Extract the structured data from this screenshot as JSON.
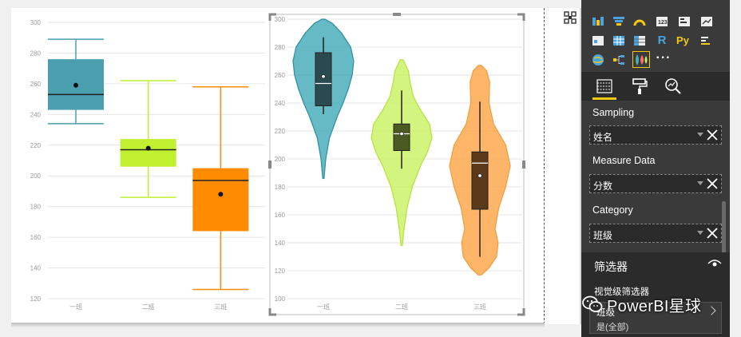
{
  "chart_data": [
    {
      "type": "boxplot",
      "categories": [
        "一班",
        "二班",
        "三班"
      ],
      "ylim": [
        120,
        300
      ],
      "yticks": [
        120,
        140,
        160,
        180,
        200,
        220,
        240,
        260,
        280,
        300
      ],
      "series": [
        {
          "category": "一班",
          "min": 234,
          "q1": 243,
          "median": 253,
          "q3": 276,
          "max": 289,
          "mean": 259,
          "color": "#4a9faf"
        },
        {
          "category": "二班",
          "min": 186,
          "q1": 206,
          "median": 217,
          "q3": 224,
          "max": 262,
          "mean": 218,
          "color": "#c0f030"
        },
        {
          "category": "三班",
          "min": 126,
          "q1": 164,
          "median": 197,
          "q3": 205,
          "max": 258,
          "mean": 188,
          "color": "#ff8c00"
        }
      ]
    },
    {
      "type": "violin",
      "categories": [
        "一班",
        "二班",
        "三班"
      ],
      "ylim": [
        100,
        300
      ],
      "yticks": [
        100,
        120,
        140,
        160,
        180,
        200,
        220,
        240,
        260,
        280,
        300
      ],
      "series": [
        {
          "category": "一班",
          "range": [
            186,
            300
          ],
          "q1": 238,
          "median": 254,
          "q3": 276,
          "whisker": [
            232,
            287
          ],
          "mean": 259,
          "color": "#4aaebc",
          "density": [
            [
              186,
              0.02
            ],
            [
              200,
              0.08
            ],
            [
              215,
              0.2
            ],
            [
              230,
              0.45
            ],
            [
              240,
              0.65
            ],
            [
              250,
              0.82
            ],
            [
              260,
              0.95
            ],
            [
              270,
              1.0
            ],
            [
              280,
              0.9
            ],
            [
              290,
              0.6
            ],
            [
              297,
              0.3
            ],
            [
              300,
              0.05
            ]
          ]
        },
        {
          "category": "二班",
          "range": [
            138,
            271
          ],
          "q1": 206,
          "median": 218,
          "q3": 225,
          "whisker": [
            193,
            249
          ],
          "mean": 218,
          "color": "#ccf26a",
          "density": [
            [
              138,
              0.02
            ],
            [
              150,
              0.08
            ],
            [
              165,
              0.18
            ],
            [
              180,
              0.35
            ],
            [
              195,
              0.62
            ],
            [
              205,
              0.85
            ],
            [
              215,
              1.0
            ],
            [
              225,
              0.92
            ],
            [
              235,
              0.62
            ],
            [
              245,
              0.38
            ],
            [
              255,
              0.28
            ],
            [
              263,
              0.22
            ],
            [
              271,
              0.05
            ]
          ]
        },
        {
          "category": "三班",
          "range": [
            117,
            267
          ],
          "q1": 164,
          "median": 197,
          "q3": 205,
          "whisker": [
            130,
            241
          ],
          "mean": 188,
          "color": "#ffa94d",
          "density": [
            [
              117,
              0.05
            ],
            [
              122,
              0.3
            ],
            [
              130,
              0.55
            ],
            [
              140,
              0.6
            ],
            [
              150,
              0.5
            ],
            [
              165,
              0.62
            ],
            [
              180,
              0.85
            ],
            [
              195,
              1.0
            ],
            [
              210,
              0.85
            ],
            [
              225,
              0.45
            ],
            [
              240,
              0.3
            ],
            [
              255,
              0.32
            ],
            [
              263,
              0.22
            ],
            [
              267,
              0.05
            ]
          ]
        }
      ]
    }
  ],
  "panel": {
    "tabs": [
      "fields-tab",
      "format-tab",
      "analytics-tab"
    ],
    "wells": [
      {
        "label": "Sampling",
        "value": "姓名"
      },
      {
        "label": "Measure Data",
        "value": "分数"
      },
      {
        "label": "Category",
        "value": "班级"
      }
    ],
    "filters_title": "筛选器",
    "visual_filters": "视觉级筛选器",
    "filter_card_title": "班级",
    "filter_card_sub": "是(全部)"
  },
  "watermark": "PowerBI星球"
}
